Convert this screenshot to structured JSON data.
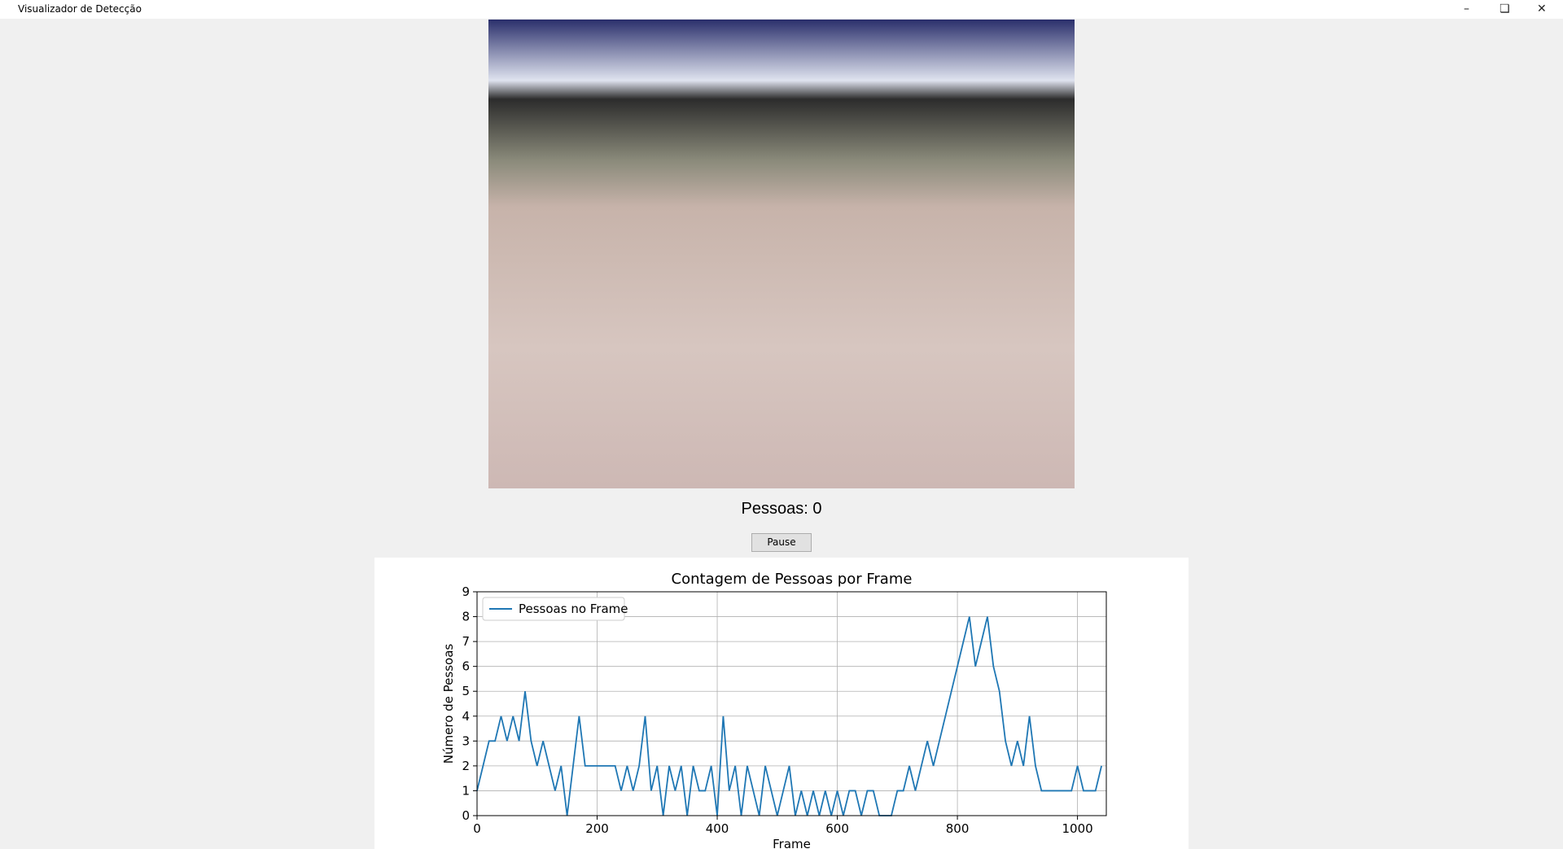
{
  "window": {
    "title": "Visualizador de Detecção"
  },
  "counter": {
    "label": "Pessoas: 0"
  },
  "controls": {
    "pause_button": "Pause"
  },
  "chart_data": {
    "type": "line",
    "title": "Contagem de Pessoas por Frame",
    "xlabel": "Frame",
    "ylabel": "Número de Pessoas",
    "x": [
      0,
      10,
      20,
      30,
      40,
      50,
      60,
      70,
      80,
      90,
      100,
      110,
      120,
      130,
      140,
      150,
      160,
      170,
      180,
      190,
      200,
      210,
      220,
      230,
      240,
      250,
      260,
      270,
      280,
      290,
      300,
      310,
      320,
      330,
      340,
      350,
      360,
      370,
      380,
      390,
      400,
      410,
      420,
      430,
      440,
      450,
      460,
      470,
      480,
      490,
      500,
      510,
      520,
      530,
      540,
      550,
      560,
      570,
      580,
      590,
      600,
      610,
      620,
      630,
      640,
      650,
      660,
      670,
      680,
      690,
      700,
      710,
      720,
      730,
      740,
      750,
      760,
      770,
      780,
      790,
      800,
      810,
      820,
      830,
      840,
      850,
      860,
      870,
      880,
      890,
      900,
      910,
      920,
      930,
      940,
      950,
      960,
      970,
      980,
      990,
      1000,
      1010,
      1020,
      1030,
      1040
    ],
    "series": [
      {
        "name": "Pessoas no Frame",
        "color": "#1f77b4",
        "values": [
          1,
          2,
          3,
          3,
          4,
          3,
          4,
          3,
          5,
          3,
          2,
          3,
          2,
          1,
          2,
          0,
          2,
          4,
          2,
          2,
          2,
          2,
          2,
          2,
          1,
          2,
          1,
          2,
          4,
          1,
          2,
          0,
          2,
          1,
          2,
          0,
          2,
          1,
          1,
          2,
          0,
          4,
          1,
          2,
          0,
          2,
          1,
          0,
          2,
          1,
          0,
          1,
          2,
          0,
          1,
          0,
          1,
          0,
          1,
          0,
          1,
          0,
          1,
          1,
          0,
          1,
          1,
          0,
          0,
          0,
          1,
          1,
          2,
          1,
          2,
          3,
          2,
          3,
          4,
          5,
          6,
          7,
          8,
          6,
          7,
          8,
          6,
          5,
          3,
          2,
          3,
          2,
          4,
          2,
          1,
          1,
          1,
          1,
          1,
          1,
          2,
          1,
          1,
          1,
          2
        ]
      }
    ],
    "xlim": [
      0,
      1048
    ],
    "ylim": [
      0,
      9
    ],
    "xticks": [
      0,
      200,
      400,
      600,
      800,
      1000
    ],
    "yticks": [
      0,
      1,
      2,
      3,
      4,
      5,
      6,
      7,
      8,
      9
    ],
    "grid": true,
    "legend": "upper-left"
  }
}
